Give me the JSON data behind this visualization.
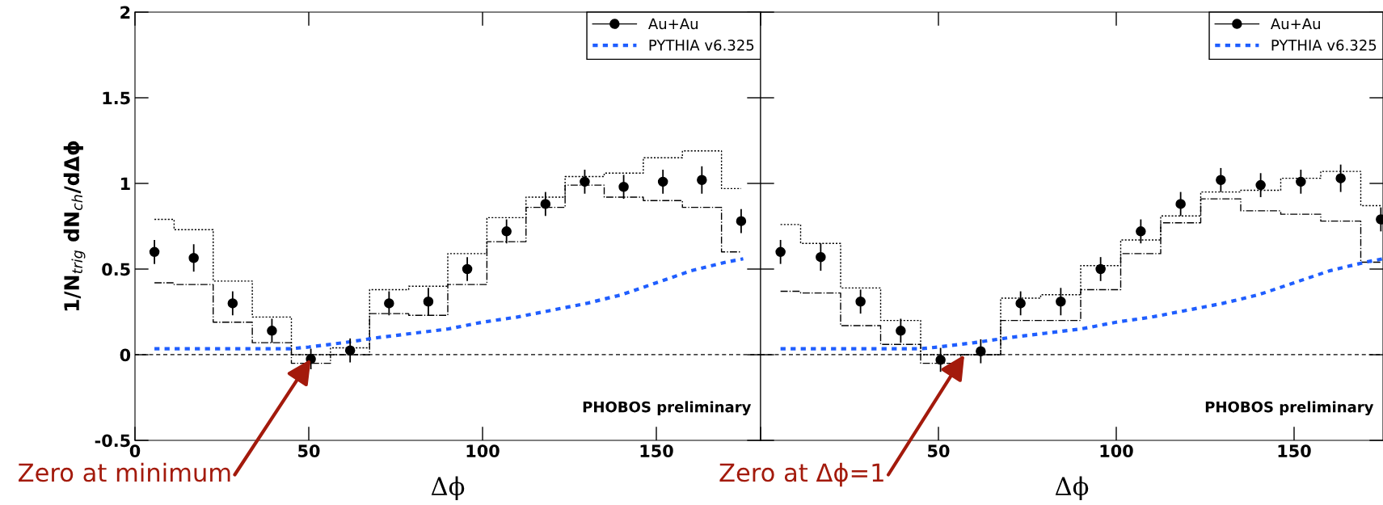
{
  "chart_data": [
    {
      "type": "scatter",
      "xlabel": "Δϕ",
      "ylabel": "1/N$_{trig}$ dN$_{ch}$/dΔϕ",
      "xlim": [
        0,
        180
      ],
      "ylim": [
        -0.5,
        2
      ],
      "xticks": [
        0,
        50,
        100,
        150
      ],
      "yticks": [
        -0.5,
        0,
        0.5,
        1,
        1.5,
        2
      ],
      "legend": "top right",
      "series": [
        {
          "name": "Au+Au",
          "marker": "circle",
          "color": "#000000",
          "x": [
            5.6,
            16.9,
            28.1,
            39.4,
            50.6,
            61.9,
            73.1,
            84.4,
            95.6,
            106.9,
            118.1,
            129.4,
            140.6,
            151.9,
            163.1,
            174.4
          ],
          "values": [
            0.6,
            0.565,
            0.3,
            0.14,
            -0.025,
            0.025,
            0.3,
            0.31,
            0.5,
            0.72,
            0.88,
            1.01,
            0.98,
            1.01,
            1.02,
            0.78
          ],
          "errors": [
            0.07,
            0.08,
            0.07,
            0.07,
            0.06,
            0.07,
            0.07,
            0.08,
            0.07,
            0.07,
            0.07,
            0.07,
            0.07,
            0.07,
            0.08,
            0.07
          ]
        },
        {
          "type": "step",
          "line_style": "dotted",
          "color": "#000000",
          "x": [
            5.6,
            16.9,
            28.1,
            39.4,
            50.6,
            61.9,
            73.1,
            84.4,
            95.6,
            106.9,
            118.1,
            129.4,
            140.6,
            151.9,
            163.1,
            174.4
          ],
          "values": [
            0.79,
            0.73,
            0.43,
            0.22,
            0.0,
            0.04,
            0.38,
            0.4,
            0.59,
            0.8,
            0.92,
            1.04,
            1.06,
            1.15,
            1.19,
            0.97
          ]
        },
        {
          "type": "step",
          "line_style": "dashdot",
          "color": "#000000",
          "x": [
            5.6,
            16.9,
            28.1,
            39.4,
            50.6,
            61.9,
            73.1,
            84.4,
            95.6,
            106.9,
            118.1,
            129.4,
            140.6,
            151.9,
            163.1,
            174.4
          ],
          "values": [
            0.42,
            0.41,
            0.19,
            0.07,
            -0.05,
            0.0,
            0.24,
            0.23,
            0.41,
            0.66,
            0.86,
            0.99,
            0.92,
            0.9,
            0.86,
            0.6
          ]
        },
        {
          "name": "PYTHIA v6.325",
          "type": "line",
          "line_style": "dotted",
          "color": "#1f5eff",
          "x": [
            5.6,
            20,
            30,
            45,
            50,
            60,
            70,
            80,
            90,
            100,
            110,
            120,
            130,
            140,
            150,
            160,
            170,
            175
          ],
          "values": [
            0.035,
            0.035,
            0.035,
            0.035,
            0.045,
            0.07,
            0.1,
            0.125,
            0.15,
            0.19,
            0.22,
            0.26,
            0.3,
            0.35,
            0.42,
            0.49,
            0.54,
            0.56
          ]
        }
      ],
      "ref_lines": [
        {
          "axis": "y",
          "value": 0,
          "color": "#000000",
          "line_style": "dashed"
        }
      ],
      "annotations": [
        "PHOBOS preliminary",
        {
          "text": "Zero at minimum",
          "x": 50.6,
          "y": -0.025
        }
      ]
    },
    {
      "type": "scatter",
      "xlabel": "Δϕ",
      "xlim": [
        0,
        175
      ],
      "ylim": [
        -0.5,
        2
      ],
      "xticks": [
        {
          "value": 0,
          "label": null
        },
        50,
        100,
        150
      ],
      "yticks": [
        -0.5,
        0,
        0.5,
        1,
        1.5,
        2
      ],
      "tick_labels": "x",
      "legend": "top right",
      "series": [
        {
          "name": "Au+Au",
          "marker": "circle",
          "color": "#000000",
          "x": [
            5.6,
            16.9,
            28.1,
            39.4,
            50.6,
            61.9,
            73.1,
            84.4,
            95.6,
            106.9,
            118.1,
            129.4,
            140.6,
            151.9,
            163.1,
            174.4
          ],
          "values": [
            0.6,
            0.57,
            0.31,
            0.14,
            -0.03,
            0.02,
            0.3,
            0.31,
            0.5,
            0.72,
            0.88,
            1.02,
            0.99,
            1.01,
            1.03,
            0.79
          ],
          "errors": [
            0.07,
            0.08,
            0.07,
            0.07,
            0.07,
            0.07,
            0.07,
            0.08,
            0.07,
            0.07,
            0.07,
            0.07,
            0.07,
            0.07,
            0.08,
            0.07
          ]
        },
        {
          "type": "step",
          "line_style": "dotted",
          "color": "#000000",
          "x": [
            5.6,
            16.9,
            28.1,
            39.4,
            50.6,
            61.9,
            73.1,
            84.4,
            95.6,
            106.9,
            118.1,
            129.4,
            140.6,
            151.9,
            163.1,
            174.4
          ],
          "values": [
            0.76,
            0.65,
            0.39,
            0.2,
            0.0,
            0.0,
            0.33,
            0.35,
            0.52,
            0.67,
            0.81,
            0.95,
            0.96,
            1.03,
            1.07,
            0.87
          ]
        },
        {
          "type": "step",
          "line_style": "dashdot",
          "color": "#000000",
          "x": [
            5.6,
            16.9,
            28.1,
            39.4,
            50.6,
            61.9,
            73.1,
            84.4,
            95.6,
            106.9,
            118.1,
            129.4,
            140.6,
            151.9,
            163.1,
            174.4
          ],
          "values": [
            0.37,
            0.36,
            0.17,
            0.06,
            -0.05,
            0.0,
            0.2,
            0.2,
            0.38,
            0.59,
            0.77,
            0.91,
            0.84,
            0.82,
            0.78,
            0.54
          ]
        },
        {
          "name": "PYTHIA v6.325",
          "type": "line",
          "line_style": "dotted",
          "color": "#1f5eff",
          "x": [
            5.6,
            20,
            30,
            45,
            50,
            60,
            70,
            80,
            90,
            100,
            110,
            120,
            130,
            140,
            150,
            160,
            170,
            175
          ],
          "values": [
            0.035,
            0.035,
            0.035,
            0.035,
            0.045,
            0.07,
            0.1,
            0.125,
            0.15,
            0.19,
            0.22,
            0.26,
            0.3,
            0.35,
            0.42,
            0.49,
            0.54,
            0.56
          ]
        }
      ],
      "ref_lines": [
        {
          "axis": "y",
          "value": 0,
          "color": "#000000",
          "line_style": "dashed"
        }
      ],
      "annotations": [
        "PHOBOS preliminary",
        {
          "text": "Zero at Δϕ=1",
          "x": 57.3,
          "y": 0
        }
      ]
    }
  ]
}
